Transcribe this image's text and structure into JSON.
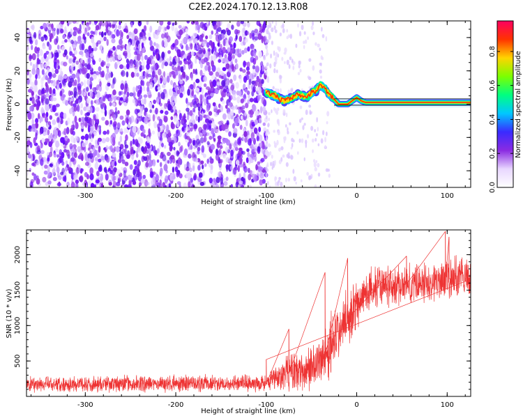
{
  "title": "C2E2.2024.170.12.13.R08",
  "chart_data": [
    {
      "type": "heatmap",
      "xlabel": "Height of straight line (km)",
      "ylabel": "Frequency (Hz)",
      "xlim": [
        -365,
        126
      ],
      "ylim": [
        -50,
        50
      ],
      "xticks": [
        -300,
        -200,
        -100,
        0,
        100
      ],
      "yticks": [
        -40,
        -20,
        0,
        20,
        40
      ],
      "noise_region_x": [
        -365,
        -100
      ],
      "sparse_region_x": [
        -100,
        -30
      ],
      "signal_trace": {
        "x": [
          -100,
          -95,
          -90,
          -85,
          -80,
          -75,
          -70,
          -65,
          -60,
          -55,
          -50,
          -45,
          -40,
          -35,
          -30,
          -25,
          -20,
          -15,
          -10,
          -5,
          0,
          5,
          10,
          20,
          40,
          60,
          80,
          100,
          126
        ],
        "y": [
          7,
          6,
          5,
          3,
          2,
          3,
          4,
          6,
          5,
          4,
          7,
          8,
          12,
          9,
          6,
          3,
          0,
          0,
          0,
          2,
          4,
          2,
          1,
          1,
          1,
          1,
          1,
          1,
          1
        ]
      },
      "colorbar": {
        "label": "Normalized spectral amplitude",
        "ticks": [
          0.0,
          0.2,
          0.4,
          0.6,
          0.8
        ],
        "colors": [
          "#ffffff",
          "#e8d6ff",
          "#8a2be2",
          "#3a2bff",
          "#00c8ff",
          "#00ff80",
          "#7cff00",
          "#ffd400",
          "#ff3300",
          "#ff0060"
        ]
      },
      "grid": false
    },
    {
      "type": "line",
      "xlabel": "Height of straight line (km)",
      "ylabel": "SNR (10 * v/v)",
      "xlim": [
        -365,
        126
      ],
      "ylim": [
        0,
        2350
      ],
      "xticks": [
        -300,
        -200,
        -100,
        0,
        100
      ],
      "yticks": [
        500,
        1000,
        1500,
        2000
      ],
      "series_color": "#ee3333",
      "grid": false,
      "envelope": {
        "x": [
          -365,
          -300,
          -200,
          -100,
          -80,
          -60,
          -40,
          -30,
          -20,
          -10,
          0,
          10,
          20,
          40,
          60,
          80,
          100,
          126
        ],
        "mean": [
          170,
          175,
          180,
          185,
          320,
          350,
          500,
          680,
          900,
          1100,
          1300,
          1450,
          1550,
          1550,
          1600,
          1600,
          1650,
          1700
        ],
        "spread": [
          130,
          130,
          135,
          140,
          280,
          320,
          420,
          500,
          500,
          450,
          380,
          350,
          330,
          330,
          330,
          340,
          360,
          380
        ]
      },
      "peak_points": [
        [
          -100,
          520
        ],
        [
          -75,
          950
        ],
        [
          -35,
          1750
        ],
        [
          -10,
          1950
        ],
        [
          55,
          1980
        ],
        [
          98,
          2330
        ],
        [
          102,
          2250
        ]
      ]
    }
  ]
}
